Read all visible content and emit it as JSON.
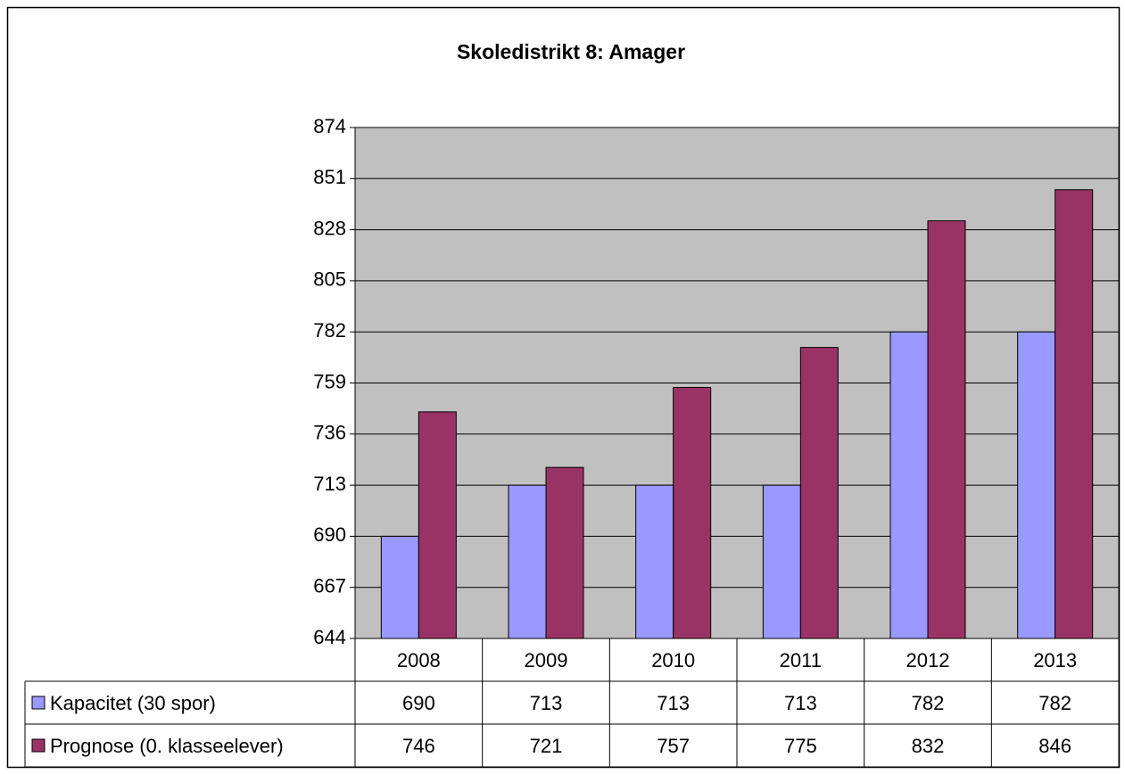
{
  "chart_data": {
    "type": "bar",
    "title": "Skoledistrikt 8: Amager",
    "categories": [
      "2008",
      "2009",
      "2010",
      "2011",
      "2012",
      "2013"
    ],
    "series": [
      {
        "name": "Kapacitet (30 spor)",
        "color": "#9999ff",
        "values": [
          690,
          713,
          713,
          713,
          782,
          782
        ]
      },
      {
        "name": "Prognose (0. klasseelever)",
        "color": "#993366",
        "values": [
          746,
          721,
          757,
          775,
          832,
          846
        ]
      }
    ],
    "ylim": [
      644,
      874
    ],
    "yticks": [
      644,
      667,
      690,
      713,
      736,
      759,
      782,
      805,
      828,
      851,
      874
    ],
    "grid": true,
    "plot_background": "#c0c0c0",
    "data_table": true
  }
}
